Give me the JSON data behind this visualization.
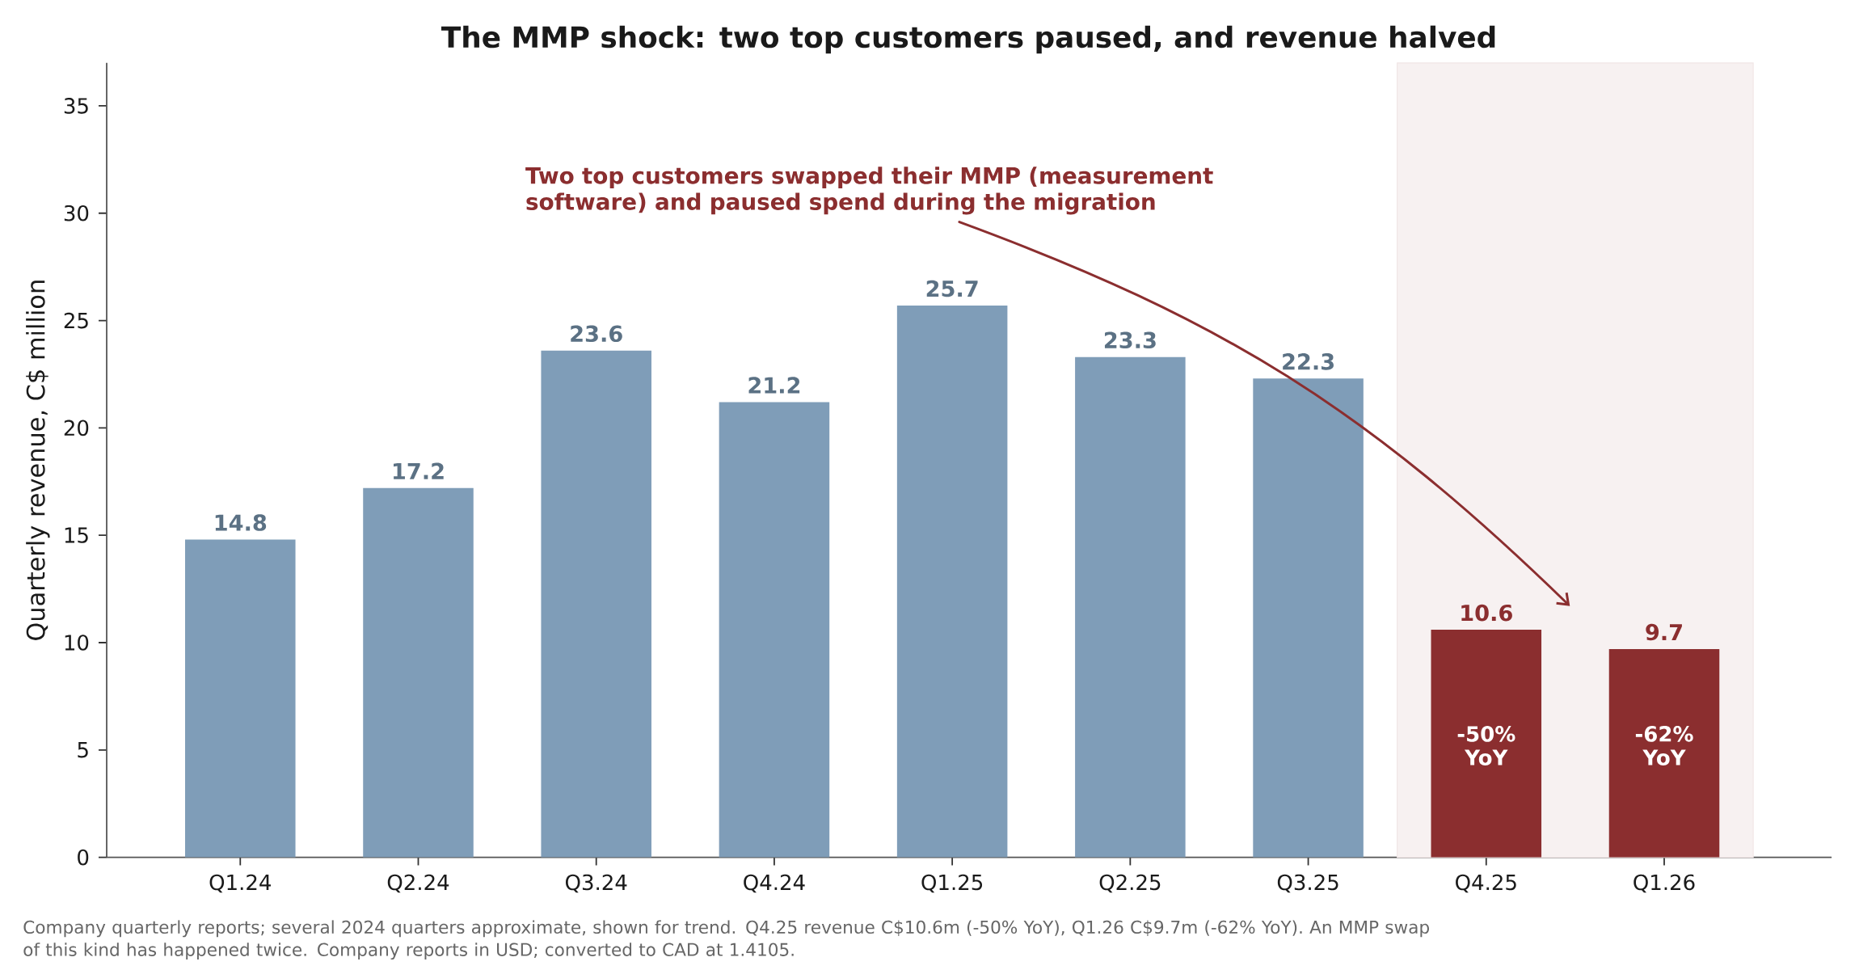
{
  "chart_data": {
    "type": "bar",
    "title": "The MMP shock: two top customers paused, and revenue halved",
    "ylabel": "Quarterly revenue, C$ million",
    "categories": [
      "Q1.24",
      "Q2.24",
      "Q3.24",
      "Q4.24",
      "Q1.25",
      "Q2.25",
      "Q3.25",
      "Q4.25",
      "Q1.26"
    ],
    "values": [
      14.8,
      17.2,
      23.6,
      21.2,
      25.7,
      23.3,
      22.3,
      10.6,
      9.7
    ],
    "colors": [
      "#7f9db8",
      "#7f9db8",
      "#7f9db8",
      "#7f9db8",
      "#7f9db8",
      "#7f9db8",
      "#7f9db8",
      "#8b2e2f",
      "#8b2e2f"
    ],
    "ylim": [
      0,
      37
    ],
    "yticks": [
      0,
      5,
      10,
      15,
      20,
      25,
      30,
      35
    ],
    "data_labels": true,
    "annotations": [
      "Two top customers swapped their MMP (measurement software) and paused spend during the migration",
      "-50% YoY",
      "-62% YoY",
      "Company quarterly reports; several 2024 quarters approximate, shown for trend. Q4.25 revenue C$10.6m (-50% YoY), Q1.26 C$9.7m (-62% YoY). An MMP swap of this kind has happened twice. Company reports in USD; converted to CAD at 1.4105."
    ]
  }
}
